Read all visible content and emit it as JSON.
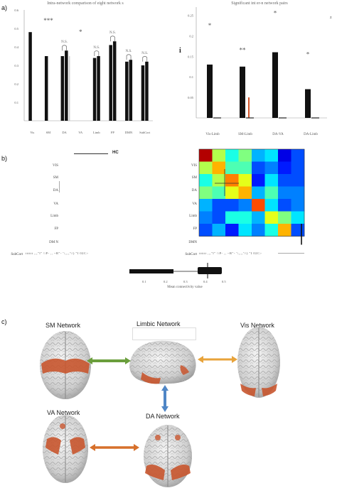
{
  "panels": {
    "a": "a)",
    "b": "b)",
    "c": "c)"
  },
  "chart_left": {
    "title": "Intra-network comparison of eight network s",
    "yticks": [
      "0.1",
      "0.2",
      "0.3",
      "0.4",
      "0.5",
      "0.6"
    ],
    "categories": [
      "Vis",
      "SM",
      "DA",
      "VA",
      "Limb",
      "FP",
      "DMN",
      "SubCort"
    ],
    "stars": [
      {
        "text": "*",
        "cat": 0,
        "level": 0.66
      },
      {
        "text": "***",
        "cat": 1,
        "level": 0.53
      },
      {
        "text": "*",
        "cat": 3,
        "level": 0.47
      }
    ],
    "ns_labels": [
      "N.S.",
      "N.S.",
      "N.S.",
      "N.S.",
      "N.S."
    ]
  },
  "chart_right": {
    "title": "Significant int er-n network pairs",
    "yticks": [
      "0.05",
      "0.1",
      "0.15",
      "0.2",
      "0.25"
    ],
    "categories": [
      "Vis-Limb",
      "SM-Limb",
      "DA-VA",
      "DA-Limb"
    ],
    "stars": [
      "*",
      "**",
      "*",
      "*"
    ],
    "corner_mark": "z"
  },
  "chart_data": [
    {
      "type": "bar",
      "title": "Intra-network comparison of eight network s",
      "categories": [
        "Vis",
        "SM",
        "DA",
        "VA",
        "Limb",
        "FP",
        "DMN",
        "SubCort"
      ],
      "series": [
        {
          "values": [
            0.48,
            0.35,
            0.35,
            0.0,
            0.34,
            0.41,
            0.32,
            0.3
          ]
        },
        {
          "values": [
            0.0,
            0.0,
            0.38,
            0.0,
            0.35,
            0.43,
            0.33,
            0.32
          ]
        }
      ],
      "ylim": [
        0,
        0.6
      ]
    },
    {
      "type": "bar",
      "title": "Significant int er-n network pairs",
      "categories": [
        "Vis-Limb",
        "SM-Limb",
        "DA-VA",
        "DA-Limb"
      ],
      "series": [
        {
          "values": [
            0.13,
            0.125,
            0.16,
            0.07
          ]
        },
        {
          "values": [
            0.0,
            0.05,
            0.0,
            0.0
          ]
        }
      ],
      "ylim": [
        0,
        0.27
      ]
    },
    {
      "type": "heatmap",
      "title": "HC",
      "rows": [
        "VIS",
        "SM",
        "DA",
        "VA",
        "Limb",
        "FP",
        "DMN",
        "SubCort"
      ],
      "cols": [
        "VIS",
        "SM",
        "DA",
        "VA",
        "Limb",
        "FP",
        "DMN",
        "SubCort"
      ],
      "xlabel": "Mean connectivity value",
      "colorbar_ticks": [
        "0.1",
        "0.2",
        "0.3",
        "0.4",
        "0.5"
      ],
      "values": [
        [
          0.95,
          0.55,
          0.4,
          0.5,
          0.3,
          0.35,
          0.1,
          0.2
        ],
        [
          0.55,
          0.7,
          0.45,
          0.45,
          0.2,
          0.25,
          0.15,
          0.2
        ],
        [
          0.4,
          0.55,
          0.75,
          0.6,
          0.15,
          0.35,
          0.2,
          0.2
        ],
        [
          0.5,
          0.45,
          0.6,
          0.7,
          0.3,
          0.45,
          0.25,
          0.25
        ],
        [
          0.3,
          0.2,
          0.2,
          0.25,
          0.8,
          0.35,
          0.2,
          0.25
        ],
        [
          0.25,
          0.2,
          0.4,
          0.4,
          0.3,
          0.6,
          0.5,
          0.35
        ],
        [
          0.2,
          0.3,
          0.15,
          0.35,
          0.25,
          0.4,
          0.7,
          0.2
        ],
        [
          0.25,
          0.2,
          0.25,
          0.3,
          0.2,
          0.2,
          0.3,
          0.6
        ]
      ]
    }
  ],
  "heatmap_left": {
    "title": "HC",
    "rows": [
      "VIS",
      "SM",
      "DA",
      "VA",
      "Limb",
      "FP",
      "DM N",
      "SubCort"
    ],
    "col_labels": "tttttt ,,,\"l\" \\\\P- ,, ~R\"- '\\,,,,'\\\\) \"I  02C>",
    "axis_label": "Mean connectivity value",
    "colorbar_ticks": [
      "0.1",
      "0.2",
      "0.3",
      "0.4",
      "0.5"
    ]
  },
  "heatmap_right": {
    "rows": [
      "VIS",
      "SM",
      "DA",
      "VA",
      "Limb",
      "FP",
      "DMN",
      "SubCort"
    ],
    "col_labels": "tttttt ,,,\"l\" \\\\P- ,, ~R\"- '\\,,,,'\\\\) \"I  02C>"
  },
  "networks": {
    "sm": "SM Network",
    "limbic": "Limbic Network",
    "vis": "Vis Network",
    "va": "VA Network",
    "da": "DA Network"
  },
  "colors": {
    "bar": "#111111",
    "red_bar": "#d2552a",
    "green_arrow": "#6a9e3c",
    "orange_arrow": "#e8a33a",
    "blue_arrow": "#4f86c6",
    "darkorange_arrow": "#d7702b",
    "brain_red": "#c8552e"
  }
}
